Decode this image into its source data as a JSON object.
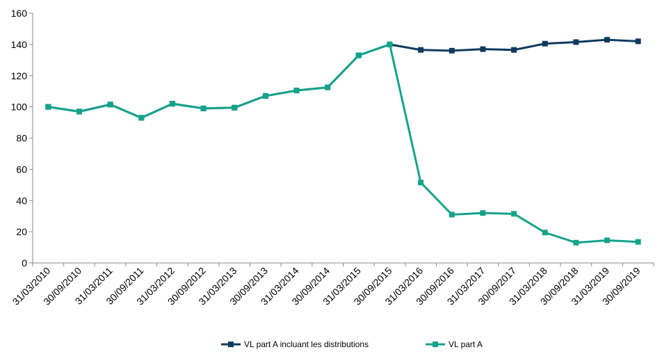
{
  "chart_data": {
    "type": "line",
    "title": "",
    "xlabel": "",
    "ylabel": "",
    "ylim": [
      0,
      160
    ],
    "yticks": [
      0,
      20,
      40,
      60,
      80,
      100,
      120,
      140,
      160
    ],
    "grid": false,
    "legend_position": "bottom",
    "categories": [
      "31/03/2010",
      "30/09/2010",
      "31/03/2011",
      "30/09/2011",
      "31/03/2012",
      "30/09/2012",
      "31/03/2013",
      "30/09/2013",
      "31/03/2014",
      "30/09/2014",
      "31/03/2015",
      "30/09/2015",
      "31/03/2016",
      "30/09/2016",
      "31/03/2017",
      "30/09/2017",
      "31/03/2018",
      "30/09/2018",
      "31/03/2019",
      "30/09/2019"
    ],
    "series": [
      {
        "name": "VL part A incluant les distributions",
        "color": "#0d3b5e",
        "values": [
          100,
          97,
          101.5,
          93,
          102,
          99,
          99.5,
          107,
          110.5,
          112.5,
          133,
          140,
          136.5,
          136,
          137,
          136.5,
          140.5,
          141.5,
          143,
          142
        ]
      },
      {
        "name": "VL part A",
        "color": "#14a38b",
        "values": [
          100,
          97,
          101.5,
          93,
          102,
          99,
          99.5,
          107,
          110.5,
          112.5,
          133,
          140,
          51.5,
          31,
          32,
          31.5,
          19.5,
          13,
          14.5,
          13.5
        ]
      }
    ]
  }
}
